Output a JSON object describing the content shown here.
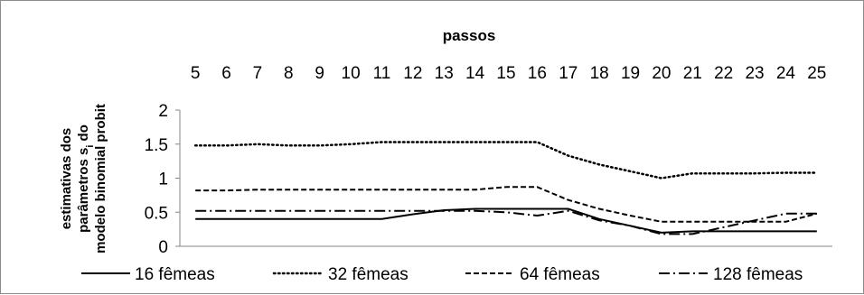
{
  "chart_data": {
    "type": "line",
    "title": "",
    "xlabel": "passos",
    "ylabel_lines": [
      "estimativas dos",
      "parâmetros s",
      "modelo binomial probit"
    ],
    "ylabel_sub": "i",
    "ylabel_after_sub": " do",
    "x": [
      5,
      6,
      7,
      8,
      9,
      10,
      11,
      12,
      13,
      14,
      15,
      16,
      17,
      18,
      19,
      20,
      21,
      22,
      23,
      24,
      25
    ],
    "x_tick_labels": [
      "5",
      "6",
      "7",
      "8",
      "9",
      "10",
      "11",
      "12",
      "13",
      "14",
      "15",
      "16",
      "17",
      "18",
      "19",
      "20",
      "21",
      "22",
      "23",
      "24",
      "25"
    ],
    "y_ticks": [
      0,
      0.5,
      1,
      1.5,
      2
    ],
    "y_tick_labels": [
      "0",
      "0.5",
      "1",
      "1.5",
      "2"
    ],
    "ylim": [
      0,
      2
    ],
    "grid": false,
    "legend_position": "bottom",
    "series": [
      {
        "name": "16 fêmeas",
        "dash": "solid",
        "values": [
          0.4,
          0.4,
          0.4,
          0.4,
          0.4,
          0.4,
          0.4,
          0.47,
          0.53,
          0.55,
          0.55,
          0.55,
          0.55,
          0.4,
          0.3,
          0.2,
          0.22,
          0.22,
          0.22,
          0.22,
          0.22
        ]
      },
      {
        "name": "32 fêmeas",
        "dash": "dotted",
        "values": [
          1.48,
          1.48,
          1.5,
          1.48,
          1.48,
          1.5,
          1.53,
          1.53,
          1.53,
          1.53,
          1.53,
          1.53,
          1.33,
          1.2,
          1.1,
          1.0,
          1.07,
          1.07,
          1.07,
          1.08,
          1.08
        ]
      },
      {
        "name": "64 fêmeas",
        "dash": "dashed",
        "values": [
          0.82,
          0.82,
          0.83,
          0.83,
          0.83,
          0.83,
          0.83,
          0.83,
          0.83,
          0.83,
          0.87,
          0.87,
          0.68,
          0.55,
          0.45,
          0.36,
          0.36,
          0.36,
          0.36,
          0.36,
          0.48
        ]
      },
      {
        "name": "128 fêmeas",
        "dash": "dashdot",
        "values": [
          0.52,
          0.52,
          0.52,
          0.52,
          0.52,
          0.52,
          0.52,
          0.52,
          0.52,
          0.52,
          0.5,
          0.45,
          0.52,
          0.38,
          0.3,
          0.18,
          0.18,
          0.28,
          0.38,
          0.48,
          0.48
        ]
      }
    ]
  }
}
